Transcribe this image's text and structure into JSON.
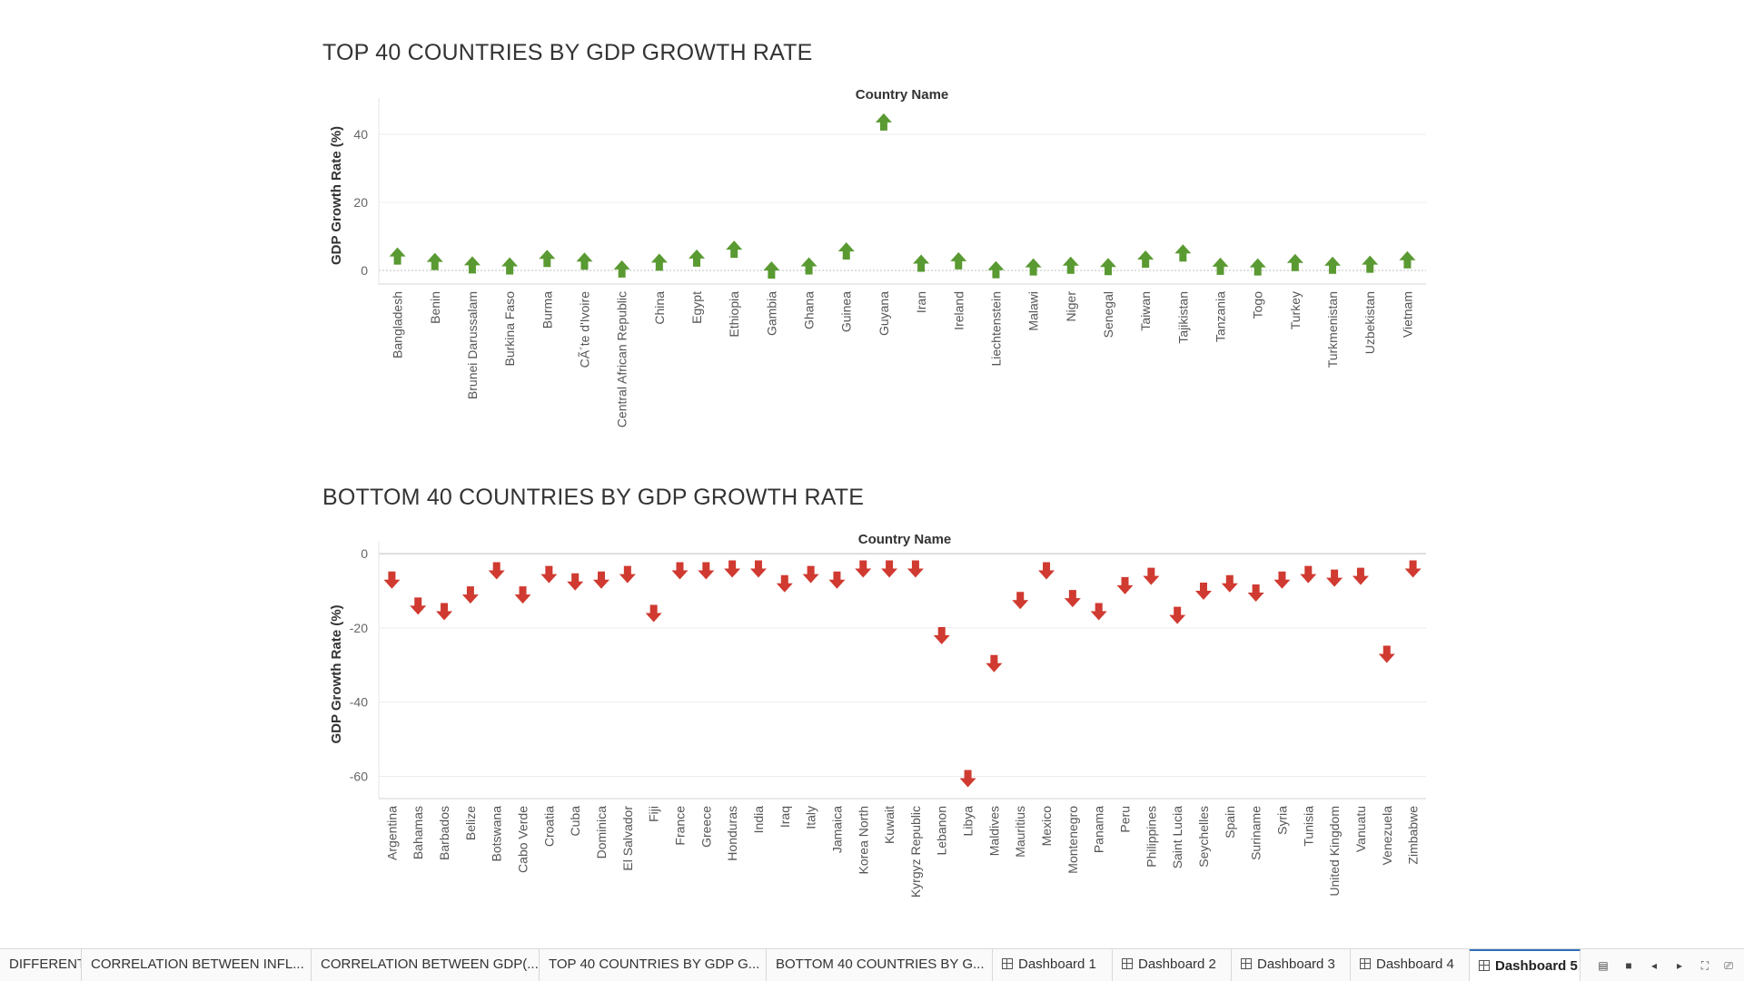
{
  "tabs": [
    {
      "label": "DIFFERENT...",
      "active": false,
      "icon": ""
    },
    {
      "label": "CORRELATION BETWEEN INFL...",
      "active": false,
      "icon": ""
    },
    {
      "label": "CORRELATION BETWEEN GDP(...",
      "active": false,
      "icon": ""
    },
    {
      "label": "TOP 40 COUNTRIES BY GDP G...",
      "active": false,
      "icon": ""
    },
    {
      "label": "BOTTOM 40 COUNTRIES BY G...",
      "active": false,
      "icon": ""
    },
    {
      "label": "Dashboard 1",
      "active": false,
      "icon": "dashboard-grid-icon"
    },
    {
      "label": "Dashboard 2",
      "active": false,
      "icon": "dashboard-grid-icon"
    },
    {
      "label": "Dashboard 3",
      "active": false,
      "icon": "dashboard-grid-icon"
    },
    {
      "label": "Dashboard 4",
      "active": false,
      "icon": "dashboard-grid-icon"
    },
    {
      "label": "Dashboard 5",
      "active": true,
      "icon": "dashboard-grid-icon"
    }
  ],
  "colors": {
    "up_arrow": "#5a9a32",
    "down_arrow": "#d03a30",
    "active_tab_accent": "#2f6fb5"
  },
  "chart_data": [
    {
      "type": "scatter",
      "marker": "up-arrow",
      "title": "TOP 40 COUNTRIES BY GDP GROWTH RATE",
      "header": "Country Name",
      "ylabel": "GDP Growth Rate (%)",
      "ylim": [
        -4,
        48
      ],
      "yticks": [
        0,
        20,
        40
      ],
      "grid": true,
      "categories": [
        "Bangladesh",
        "Benin",
        "Brunei Darussalam",
        "Burkina Faso",
        "Burma",
        "CÃ´te d'Ivoire",
        "Central African Republic",
        "China",
        "Egypt",
        "Ethiopia",
        "Gambia",
        "Ghana",
        "Guinea",
        "Guyana",
        "Iran",
        "Ireland",
        "Liechtenstein",
        "Malawi",
        "Niger",
        "Senegal",
        "Taiwan",
        "Tajikistan",
        "Tanzania",
        "Togo",
        "Turkey",
        "Turkmenistan",
        "Uzbekistan",
        "Vietnam"
      ],
      "values": [
        4.1,
        2.5,
        1.5,
        1.2,
        3.4,
        2.6,
        0.3,
        2.3,
        3.5,
        6.1,
        0.0,
        1.2,
        5.6,
        43.5,
        2.0,
        2.7,
        0.1,
        0.9,
        1.4,
        1.0,
        3.2,
        5.0,
        1.1,
        0.9,
        2.2,
        1.4,
        1.7,
        3.0
      ]
    },
    {
      "type": "scatter",
      "marker": "down-arrow",
      "title": "BOTTOM 40 COUNTRIES BY GDP GROWTH RATE",
      "header": "Country Name",
      "ylabel": "GDP Growth Rate (%)",
      "ylim": [
        -66,
        1
      ],
      "yticks": [
        0,
        -20,
        -40,
        -60
      ],
      "grid": true,
      "categories": [
        "Argentina",
        "Bahamas",
        "Barbados",
        "Belize",
        "Botswana",
        "Cabo Verde",
        "Croatia",
        "Cuba",
        "Dominica",
        "El Salvador",
        "Fiji",
        "France",
        "Greece",
        "Honduras",
        "India",
        "Iraq",
        "Italy",
        "Jamaica",
        "Korea North",
        "Kuwait",
        "Kyrgyz Republic",
        "Lebanon",
        "Libya",
        "Maldives",
        "Mauritius",
        "Mexico",
        "Montenegro",
        "Panama",
        "Peru",
        "Philippines",
        "Saint Lucia",
        "Seychelles",
        "Spain",
        "Suriname",
        "Syria",
        "Tunisia",
        "United Kingdom",
        "Vanuatu",
        "Venezuela",
        "Zimbabwe"
      ],
      "values": [
        -7.0,
        -14.0,
        -15.5,
        -11.0,
        -4.5,
        -11.0,
        -5.5,
        -7.5,
        -7.0,
        -5.5,
        -16.0,
        -4.5,
        -4.5,
        -4.0,
        -4.0,
        -8.0,
        -5.5,
        -7.0,
        -4.0,
        -4.0,
        -4.0,
        -22.0,
        -60.5,
        -29.5,
        -12.5,
        -4.5,
        -12.0,
        -15.5,
        -8.5,
        -6.0,
        -16.5,
        -10.0,
        -8.0,
        -10.5,
        -7.0,
        -5.5,
        -6.5,
        -6.0,
        -27.0,
        -4.0
      ]
    }
  ]
}
